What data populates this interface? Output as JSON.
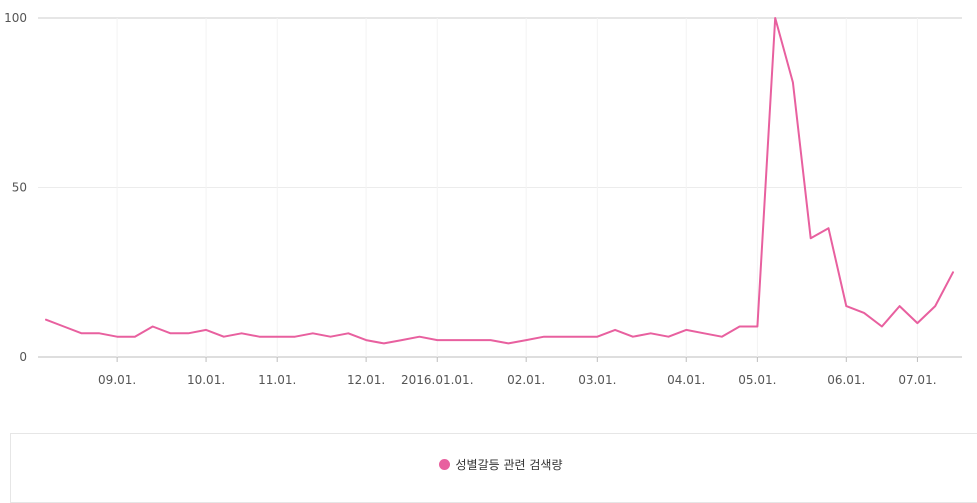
{
  "chart_data": {
    "type": "line",
    "title": "",
    "xlabel": "",
    "ylabel": "",
    "ylim": [
      0,
      100
    ],
    "yticks": [
      0,
      50,
      100
    ],
    "grid": true,
    "legend_position": "bottom",
    "x_tick_labels": [
      "09.01.",
      "10.01.",
      "11.01.",
      "12.01.",
      "2016.01.01.",
      "02.01.",
      "03.01.",
      "04.01.",
      "05.01.",
      "06.01.",
      "07.01."
    ],
    "x_tick_index": [
      4,
      9,
      13,
      18,
      22,
      27,
      31,
      36,
      40,
      45,
      49
    ],
    "series": [
      {
        "name": "성별갈등 관련 검색량",
        "color": "#e8609f",
        "values": [
          11,
          9,
          7,
          7,
          6,
          6,
          9,
          7,
          7,
          8,
          6,
          7,
          6,
          6,
          6,
          7,
          6,
          7,
          5,
          4,
          5,
          6,
          5,
          5,
          5,
          5,
          4,
          5,
          6,
          6,
          6,
          6,
          8,
          6,
          7,
          6,
          8,
          7,
          6,
          9,
          9,
          100,
          81,
          35,
          38,
          15,
          13,
          9,
          15,
          10,
          15,
          25
        ]
      }
    ]
  }
}
